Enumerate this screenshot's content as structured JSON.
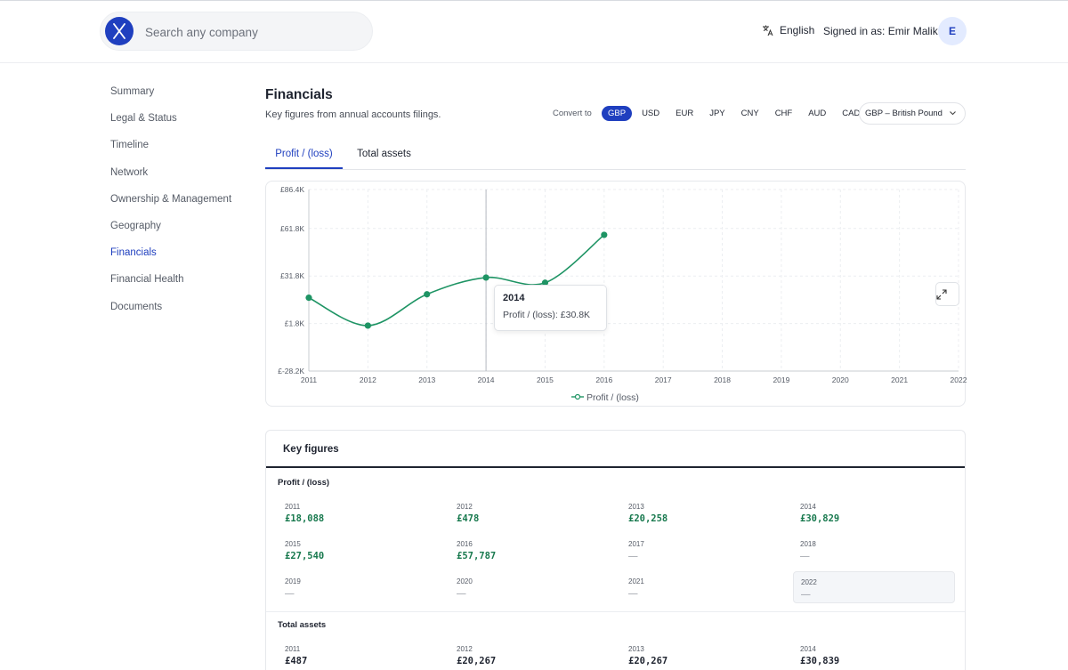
{
  "header": {
    "search_placeholder": "Search any company",
    "language": "English",
    "signed_in": "Signed in as: Emir Malik",
    "avatar_initial": "E"
  },
  "sidebar": {
    "items": [
      {
        "label": "Summary"
      },
      {
        "label": "Legal & Status"
      },
      {
        "label": "Timeline"
      },
      {
        "label": "Network"
      },
      {
        "label": "Ownership & Management"
      },
      {
        "label": "Geography"
      },
      {
        "label": "Financials",
        "active": true
      },
      {
        "label": "Financial Health"
      },
      {
        "label": "Documents"
      }
    ]
  },
  "main": {
    "title": "Financials",
    "subtitle": "Key figures from annual accounts filings.",
    "convert_label": "Convert to",
    "currencies": [
      "GBP",
      "USD",
      "EUR",
      "JPY",
      "CNY",
      "CHF",
      "AUD",
      "CAD"
    ],
    "active_currency": "GBP",
    "currency_select": "GBP – British Pound",
    "tabs": [
      {
        "label": "Profit / (loss)",
        "active": true
      },
      {
        "label": "Total assets"
      }
    ]
  },
  "chart_data": {
    "type": "line",
    "x": [
      "2011",
      "2012",
      "2013",
      "2014",
      "2015",
      "2016",
      "2017",
      "2018",
      "2019",
      "2020",
      "2021",
      "2022"
    ],
    "series": [
      {
        "name": "Profit / (loss)",
        "values": [
          18088,
          478,
          20258,
          30829,
          27540,
          57787,
          null,
          null,
          null,
          null,
          null,
          null
        ]
      }
    ],
    "y_ticks": [
      "£86.4K",
      "£61.8K",
      "£31.8K",
      "£1.8K",
      "£-28.2K"
    ],
    "y_tick_values": [
      86400,
      61800,
      31800,
      1800,
      -28200
    ],
    "ylim": [
      -28200,
      86400
    ],
    "legend": "bottom-center",
    "color": "#1e9464",
    "hover_index": 3,
    "tooltip": {
      "year": "2014",
      "text": "Profit / (loss): £30.8K"
    }
  },
  "key_figures": {
    "title": "Key figures",
    "profit": {
      "title": "Profit / (loss)",
      "cells": [
        {
          "year": "2011",
          "value": "£18,088"
        },
        {
          "year": "2012",
          "value": "£478"
        },
        {
          "year": "2013",
          "value": "£20,258"
        },
        {
          "year": "2014",
          "value": "£30,829"
        },
        {
          "year": "2015",
          "value": "£27,540"
        },
        {
          "year": "2016",
          "value": "£57,787"
        },
        {
          "year": "2017",
          "value": "—"
        },
        {
          "year": "2018",
          "value": "—"
        },
        {
          "year": "2019",
          "value": "—"
        },
        {
          "year": "2020",
          "value": "—"
        },
        {
          "year": "2021",
          "value": "—"
        },
        {
          "year": "2022",
          "value": "—",
          "highlight": true
        }
      ]
    },
    "assets": {
      "title": "Total assets",
      "cells": [
        {
          "year": "2011",
          "value": "£487"
        },
        {
          "year": "2012",
          "value": "£20,267"
        },
        {
          "year": "2013",
          "value": "£20,267"
        },
        {
          "year": "2014",
          "value": "£30,839"
        }
      ]
    }
  }
}
